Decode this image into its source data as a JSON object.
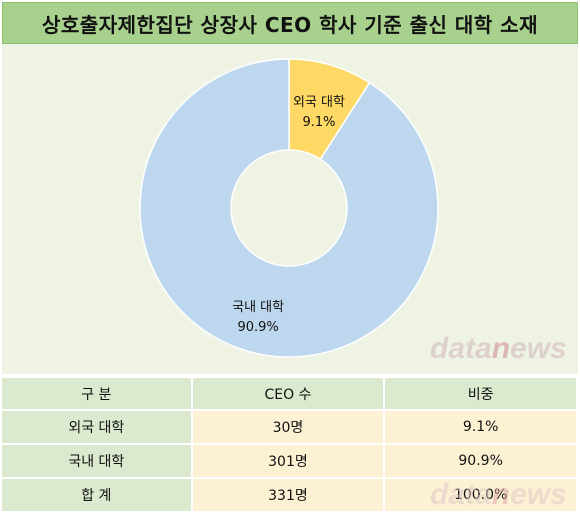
{
  "title": "상호출자제한집단 상장사 CEO 학사 기준 출신 대학 소재",
  "chart_data": {
    "type": "pie",
    "donut": true,
    "categories": [
      "외국 대학",
      "국내 대학"
    ],
    "values": [
      9.1,
      90.9
    ],
    "value_labels": [
      "9.1%",
      "90.9%"
    ],
    "colors": [
      "#ffd966",
      "#bdd7ee"
    ]
  },
  "watermark": {
    "prefix": "data",
    "accent": "n",
    "suffix": "ews"
  },
  "table": {
    "headers": [
      "구 분",
      "CEO 수",
      "비중"
    ],
    "rows": [
      [
        "외국 대학",
        "30명",
        "9.1%"
      ],
      [
        "국내 대학",
        "301명",
        "90.9%"
      ]
    ],
    "total": [
      "합 계",
      "331명",
      "100.0%"
    ]
  }
}
